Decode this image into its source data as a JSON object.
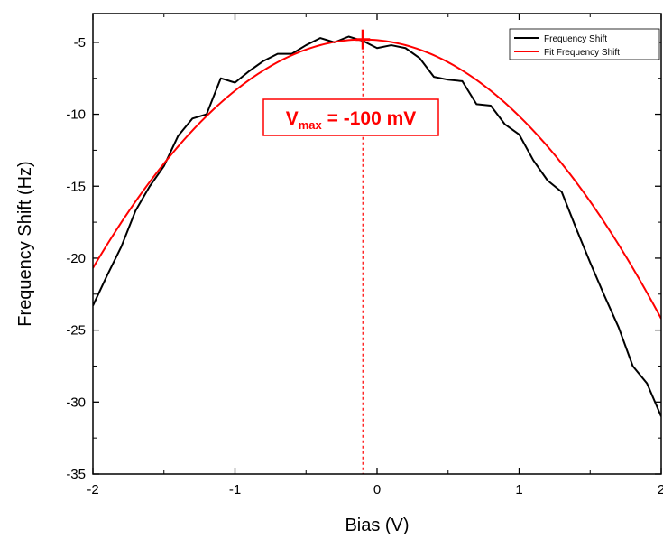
{
  "chart_data": {
    "type": "line",
    "title": "",
    "xlabel": "Bias (V)",
    "ylabel": "Frequency Shift (Hz)",
    "xlim": [
      -2,
      2
    ],
    "ylim": [
      -35,
      -3
    ],
    "xticks": [
      -2,
      -1,
      0,
      1,
      2
    ],
    "yticks": [
      -35,
      -30,
      -25,
      -20,
      -15,
      -10,
      -5
    ],
    "legend_position": "top-right",
    "series": [
      {
        "name": "Frequency Shift",
        "color": "#000000",
        "x": [
          -2.0,
          -1.9,
          -1.8,
          -1.7,
          -1.6,
          -1.5,
          -1.4,
          -1.3,
          -1.2,
          -1.1,
          -1.0,
          -0.9,
          -0.8,
          -0.7,
          -0.6,
          -0.5,
          -0.4,
          -0.3,
          -0.2,
          -0.1,
          0.0,
          0.1,
          0.2,
          0.3,
          0.4,
          0.5,
          0.6,
          0.7,
          0.8,
          0.9,
          1.0,
          1.1,
          1.2,
          1.3,
          1.4,
          1.5,
          1.6,
          1.7,
          1.8,
          1.9,
          2.0
        ],
        "y": [
          -23.3,
          -21.2,
          -19.2,
          -16.7,
          -15.0,
          -13.6,
          -11.5,
          -10.3,
          -10.0,
          -7.5,
          -7.8,
          -7.0,
          -6.3,
          -5.8,
          -5.8,
          -5.2,
          -4.7,
          -5.0,
          -4.6,
          -4.9,
          -5.4,
          -5.2,
          -5.4,
          -6.1,
          -7.4,
          -7.6,
          -7.7,
          -9.3,
          -9.4,
          -10.7,
          -11.4,
          -13.2,
          -14.6,
          -15.4,
          -17.9,
          -20.3,
          -22.6,
          -24.8,
          -27.5,
          -28.7,
          -31.0
        ]
      },
      {
        "name": "Fit Frequency Shift",
        "color": "#ff0000",
        "fit": {
          "type": "quadratic",
          "vertex_x": -0.1,
          "vertex_y": -4.8,
          "a": 4.4
        }
      }
    ],
    "annotation": {
      "label_main": "V",
      "label_sub": "max",
      "label_value": " = -100 mV",
      "x": -0.1,
      "color": "#ff0000"
    }
  }
}
